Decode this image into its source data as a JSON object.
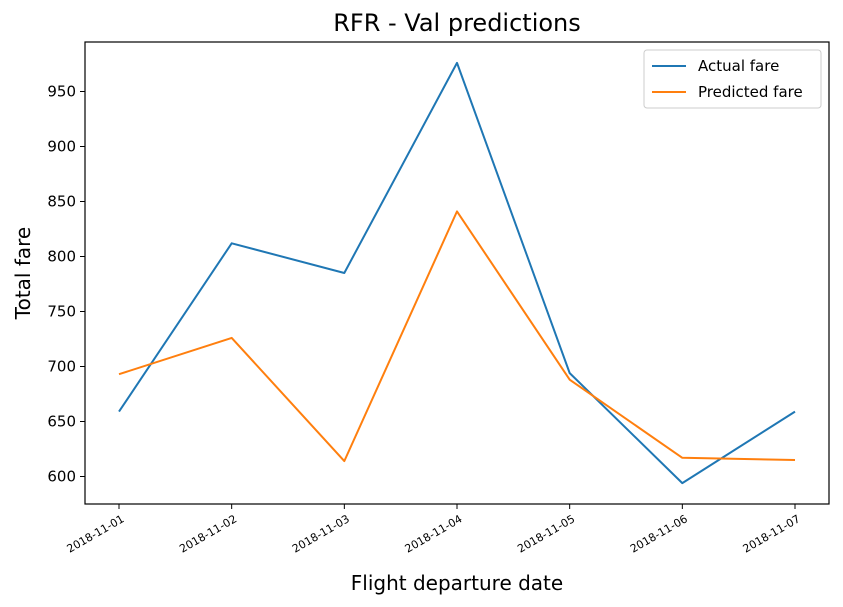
{
  "chart_data": {
    "type": "line",
    "title": "RFR - Val predictions",
    "xlabel": "Flight departure date",
    "ylabel": "Total fare",
    "x": [
      "2018-11-01",
      "2018-11-02",
      "2018-11-03",
      "2018-11-04",
      "2018-11-05",
      "2018-11-06",
      "2018-11-07"
    ],
    "yticks": [
      600,
      650,
      700,
      750,
      800,
      850,
      900,
      950
    ],
    "ylim": [
      575,
      995
    ],
    "grid": false,
    "legend_position": "top-right",
    "series": [
      {
        "name": "Actual fare",
        "color": "#1f77b4",
        "values": [
          659,
          812,
          785,
          976,
          694,
          594,
          659
        ]
      },
      {
        "name": "Predicted fare",
        "color": "#ff7f0e",
        "values": [
          693,
          726,
          614,
          841,
          688,
          617,
          615
        ]
      }
    ]
  }
}
